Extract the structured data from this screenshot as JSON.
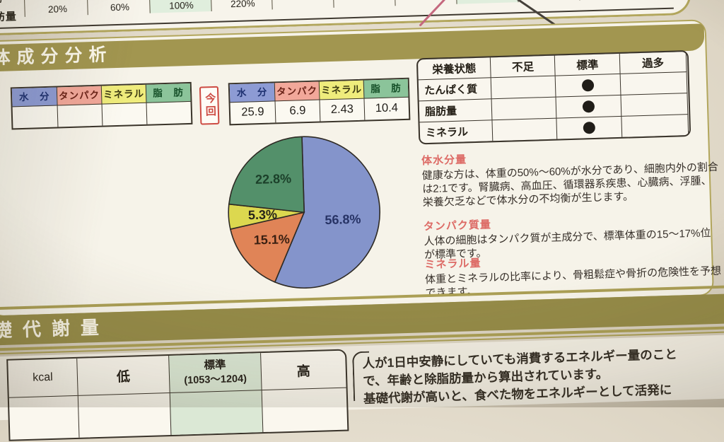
{
  "top_strip": {
    "row_label": "脂肪量",
    "row_label_fragment": "脂肪",
    "ticks": [
      "20%",
      "60%",
      "100%",
      "220%"
    ]
  },
  "section1": {
    "title": "体成分分析",
    "current_label": "今回",
    "columns": [
      {
        "label": "水　分",
        "value": "25.9",
        "header_bg": "#8d9bd4",
        "header_text": "#1d3070"
      },
      {
        "label": "タンパク",
        "value": "6.9",
        "header_bg": "#f2a89a",
        "header_text": "#6b2318"
      },
      {
        "label": "ミネラル",
        "value": "2.43",
        "header_bg": "#efec7c",
        "header_text": "#3c3a12"
      },
      {
        "label": "脂　肪",
        "value": "10.4",
        "header_bg": "#8bc49a",
        "header_text": "#154f28"
      }
    ],
    "status_table": {
      "col_headers": [
        "栄養状態",
        "不足",
        "標準",
        "過多"
      ],
      "rows": [
        {
          "label": "たんぱく質",
          "status": "標準"
        },
        {
          "label": "脂肪量",
          "status": "標準"
        },
        {
          "label": "ミネラル",
          "status": "標準"
        }
      ]
    },
    "notes": [
      {
        "heading": "体水分量",
        "body": "健康な方は、体重の50%～60%が水分であり、細胞内外の割合は2:1です。腎臓病、高血圧、循環器系疾患、心臓病、浮腫、栄養欠乏などで体水分の不均衡が生じます。"
      },
      {
        "heading": "タンパク質量",
        "body": "人体の細胞はタンパク質が主成分で、標準体重の15～17%位が標準です。"
      },
      {
        "heading": "ミネラル量",
        "body": "体重とミネラルの比率により、骨粗鬆症や骨折の危険性を予想できます。"
      }
    ]
  },
  "chart_data": {
    "type": "pie",
    "title": "",
    "start_angle_deg": 0,
    "direction": "clockwise",
    "slices": [
      {
        "label": "水分",
        "value": 56.8,
        "display": "56.8%",
        "color": "#8494cb",
        "label_color": "#273365"
      },
      {
        "label": "タンパク",
        "value": 15.1,
        "display": "15.1%",
        "color": "#e08457",
        "label_color": "#3a2012"
      },
      {
        "label": "ミネラル",
        "value": 5.3,
        "display": "5.3%",
        "color": "#dcd84f",
        "label_color": "#24221a"
      },
      {
        "label": "脂肪",
        "value": 22.8,
        "display": "22.8%",
        "color": "#53906a",
        "label_color": "#1c402a"
      }
    ]
  },
  "section2": {
    "title": "礎代謝量",
    "table": {
      "headers": [
        "kcal",
        "低",
        "標準",
        "高"
      ],
      "standard_range": "(1053～1204)"
    },
    "body_lines": [
      "人が1日中安静にしていても消費するエネルギー量のこと",
      "で、年齢と除脂肪量から算出されています。",
      "基礎代謝が高いと、食べた物をエネルギーとして活発に"
    ]
  }
}
